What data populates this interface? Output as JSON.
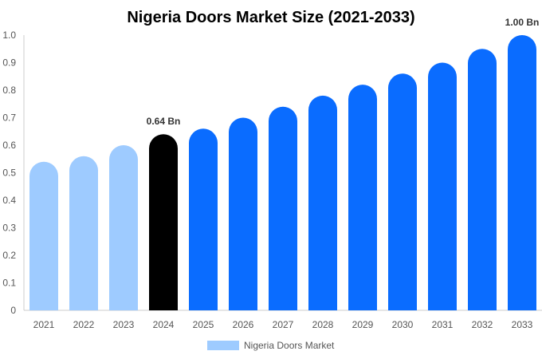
{
  "chart_data": {
    "type": "bar",
    "title": "Nigeria Doors Market Size (2021-2033)",
    "categories": [
      "2021",
      "2022",
      "2023",
      "2024",
      "2025",
      "2026",
      "2027",
      "2028",
      "2029",
      "2030",
      "2031",
      "2032",
      "2033"
    ],
    "values": [
      0.54,
      0.56,
      0.6,
      0.64,
      0.66,
      0.7,
      0.74,
      0.78,
      0.82,
      0.86,
      0.9,
      0.95,
      1.0
    ],
    "ylim": [
      0,
      1.0
    ],
    "yticks": [
      "0",
      "0.1",
      "0.2",
      "0.3",
      "0.4",
      "0.5",
      "0.6",
      "0.7",
      "0.8",
      "0.9",
      "1.0"
    ],
    "xlabel": "",
    "ylabel": "",
    "data_labels": [
      {
        "category": "2024",
        "text": "0.64 Bn"
      },
      {
        "category": "2033",
        "text": "1.00 Bn"
      }
    ],
    "bar_colors": {
      "historical": "#9ecbff",
      "base_year": "#000000",
      "forecast": "#0a6cff"
    },
    "legend": {
      "position": "bottom",
      "entries": [
        {
          "name": "Nigeria Doors Market",
          "color": "#9ecbff"
        }
      ]
    },
    "grid": false
  }
}
